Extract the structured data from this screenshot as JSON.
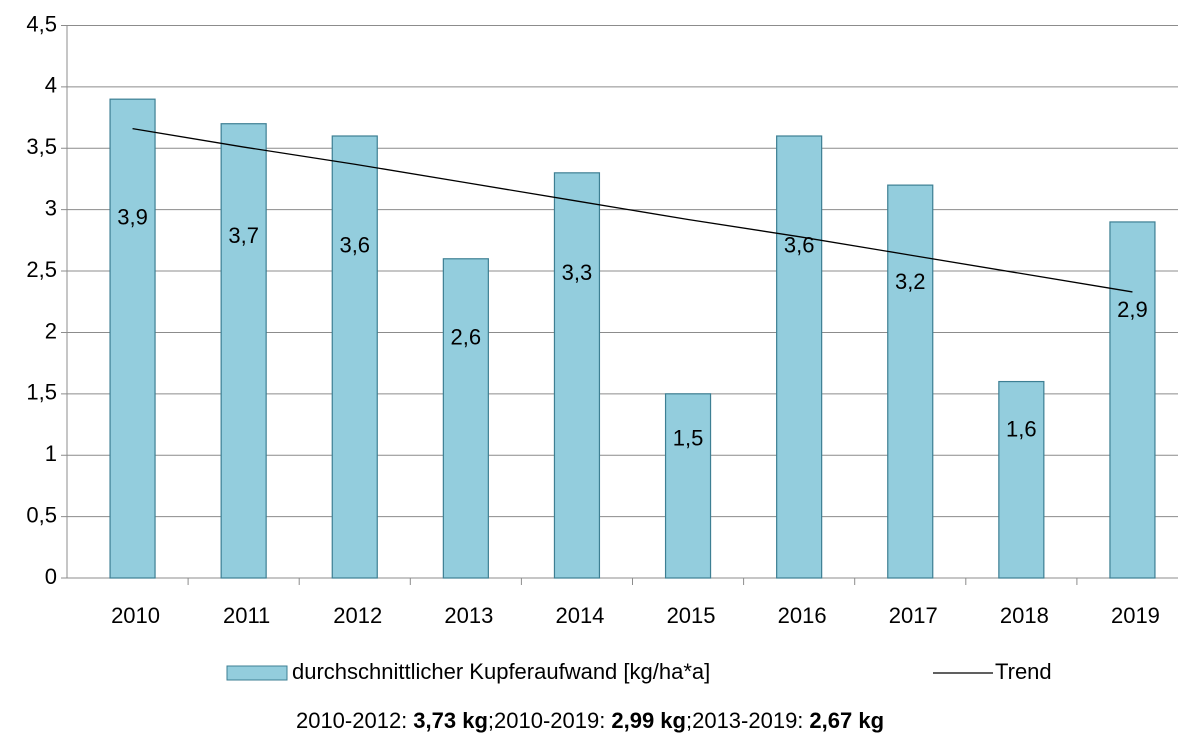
{
  "chart_data": {
    "type": "bar",
    "categories": [
      "2010",
      "2011",
      "2012",
      "2013",
      "2014",
      "2015",
      "2016",
      "2017",
      "2018",
      "2019"
    ],
    "series": [
      {
        "name": "durchschnittlicher Kupferaufwand [kg/ha*a]",
        "color": "#93cddd",
        "values": [
          3.9,
          3.7,
          3.6,
          2.6,
          3.3,
          1.5,
          3.6,
          3.2,
          1.6,
          2.9
        ],
        "value_labels": [
          "3,9",
          "3,7",
          "3,6",
          "2,6",
          "3,3",
          "1,5",
          "3,6",
          "3,2",
          "1,6",
          "2,9"
        ]
      },
      {
        "name": "Trend",
        "type": "line",
        "color": "#000000",
        "values": [
          3.66,
          3.51,
          3.37,
          3.22,
          3.07,
          2.92,
          2.78,
          2.63,
          2.48,
          2.33
        ]
      }
    ],
    "ylim": [
      0,
      4.5
    ],
    "yticks": [
      0,
      {
        "value": 0.5,
        "label": "0,5"
      },
      1,
      {
        "value": 1.5,
        "label": "1,5"
      },
      2,
      {
        "value": 2.5,
        "label": "2,5"
      },
      3,
      {
        "value": 3.5,
        "label": "3,5"
      },
      4,
      {
        "value": 4.5,
        "label": "4,5"
      }
    ],
    "grid": true,
    "legend": "bottom",
    "footer": [
      {
        "label": "2010-2012:",
        "value": "3,73 kg",
        "separator": ";"
      },
      {
        "label": "2010-2019:",
        "value": "2,99 kg",
        "separator": ";"
      },
      {
        "label": "2013-2019:",
        "value": "2,67 kg"
      }
    ]
  }
}
